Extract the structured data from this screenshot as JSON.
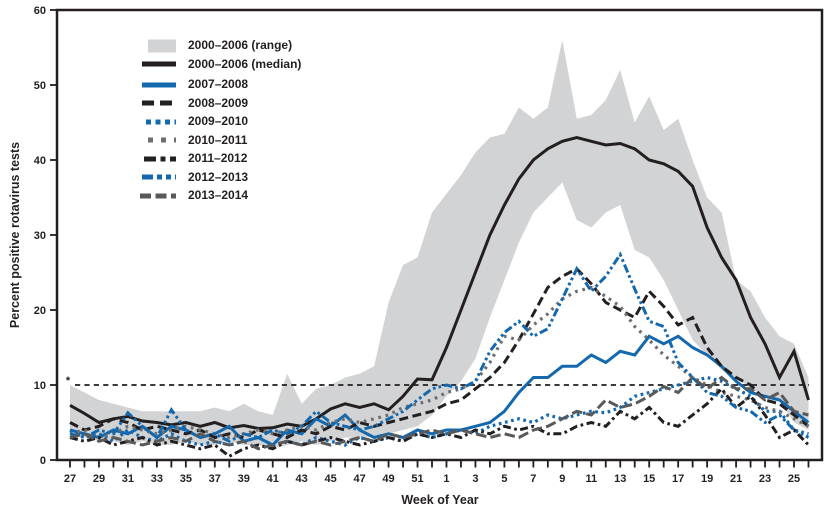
{
  "figure": {
    "ylabel": "Percent positive rotavirus tests",
    "xlabel": "Week of Year",
    "threshold_marker": "*"
  },
  "chart_data": {
    "type": "line",
    "xlabel": "Week of Year",
    "ylabel": "Percent positive rotavirus tests",
    "ylim": [
      0,
      60
    ],
    "y_ticks": [
      0,
      10,
      20,
      30,
      40,
      50,
      60
    ],
    "grid": "off",
    "legend_position": "upper-left-inside",
    "x_categories": [
      27,
      28,
      29,
      30,
      31,
      32,
      33,
      34,
      35,
      36,
      37,
      38,
      39,
      40,
      41,
      42,
      43,
      44,
      45,
      46,
      47,
      48,
      49,
      50,
      51,
      52,
      1,
      2,
      3,
      4,
      5,
      6,
      7,
      8,
      9,
      10,
      11,
      12,
      13,
      14,
      15,
      16,
      17,
      18,
      19,
      20,
      21,
      22,
      23,
      24,
      25,
      26
    ],
    "x_tick_labels": [
      27,
      29,
      31,
      33,
      35,
      37,
      39,
      41,
      43,
      45,
      47,
      49,
      51,
      1,
      3,
      5,
      7,
      9,
      11,
      13,
      15,
      17,
      19,
      21,
      23,
      25
    ],
    "threshold": {
      "y": 10,
      "style": "dashed",
      "marker": "*",
      "color": "#231f20"
    },
    "range_band": {
      "name": "2000–2006 (range)",
      "color": "#d2d3d4",
      "upper": [
        10,
        9,
        8,
        7.5,
        7,
        6.5,
        6.5,
        6.5,
        6.5,
        6.5,
        7,
        6.5,
        7.5,
        6.5,
        6,
        11.5,
        7.5,
        9.5,
        10,
        11,
        11.5,
        12.5,
        21,
        26,
        27,
        33,
        35.5,
        38,
        41,
        43,
        43.5,
        47,
        45.5,
        47,
        56,
        45.5,
        46,
        48,
        52,
        45,
        48.5,
        44,
        45.5,
        40,
        35,
        33,
        24,
        22.5,
        19,
        16.5,
        15.5,
        11
      ],
      "lower": [
        3.5,
        3,
        2.5,
        2.5,
        2,
        2.5,
        2,
        2,
        2.5,
        2,
        2,
        2.5,
        2,
        2,
        1.5,
        2,
        2.5,
        2,
        2.5,
        3,
        3,
        3,
        3.5,
        4,
        4.5,
        6,
        8.5,
        10.5,
        13.5,
        19,
        24,
        29,
        33,
        35,
        37,
        32,
        31,
        33,
        34,
        28,
        27,
        24,
        20,
        16,
        14,
        12,
        11,
        9.5,
        8.5,
        8,
        5,
        4
      ]
    },
    "series": [
      {
        "name": "2000–2006 (median)",
        "color": "#231f20",
        "line_style": "solid",
        "values": [
          7.3,
          6.2,
          5,
          5.5,
          5.8,
          5.2,
          5,
          4.7,
          5,
          4.5,
          5,
          4.3,
          4.6,
          4.2,
          4.3,
          4.8,
          4.5,
          5.5,
          6.8,
          7.5,
          7,
          7.5,
          6.7,
          8.5,
          10.8,
          10.7,
          15,
          20,
          25,
          30,
          34,
          37.5,
          40,
          41.5,
          42.5,
          43,
          42.5,
          42,
          42.2,
          41.5,
          40,
          39.5,
          38.5,
          36.5,
          31,
          27,
          24,
          19,
          15.5,
          11,
          14.5,
          8
        ]
      },
      {
        "name": "2007–2008",
        "color": "#1368ae",
        "line_style": "solid",
        "values": [
          4,
          3.5,
          3,
          4,
          3.5,
          4.5,
          3,
          4.5,
          4,
          3,
          3.5,
          4.5,
          2.5,
          3,
          2,
          4,
          3.5,
          5.5,
          4.5,
          6,
          4,
          3,
          3.5,
          3,
          4,
          3.5,
          4,
          4,
          4.5,
          5,
          6.5,
          9,
          11,
          11,
          12.5,
          12.5,
          14,
          13,
          14.5,
          14,
          16.5,
          15.5,
          16.5,
          15,
          14,
          12.5,
          10.5,
          9,
          8.5,
          8,
          6.5,
          5
        ]
      },
      {
        "name": "2008–2009",
        "color": "#231f20",
        "line_style": "dash",
        "values": [
          5,
          4,
          4.5,
          5.5,
          5,
          4,
          4.5,
          4,
          3.5,
          4,
          3,
          3.5,
          3,
          4,
          3.5,
          3,
          4,
          3.5,
          4.5,
          4,
          5,
          4.5,
          5,
          5.5,
          6,
          6.5,
          7.5,
          8,
          9.5,
          11,
          13,
          16,
          19.5,
          23,
          24.5,
          25.5,
          23.5,
          21,
          20,
          19,
          22.5,
          20.5,
          18,
          19,
          15,
          12.5,
          11,
          10,
          8,
          7.5,
          6,
          4.5
        ]
      },
      {
        "name": "2009–2010",
        "color": "#1368ae",
        "line_style": "dotted",
        "values": [
          4,
          3,
          3.5,
          2.5,
          4,
          3,
          2.5,
          3.5,
          2.5,
          2,
          2.5,
          2,
          2.5,
          3,
          2,
          2.5,
          2,
          3,
          2.5,
          2,
          3,
          2.5,
          3,
          2.5,
          3.5,
          3,
          3.5,
          4,
          3.5,
          4.5,
          5,
          5.5,
          5,
          6,
          5.5,
          6,
          6.5,
          6.3,
          7,
          8.5,
          9,
          9.5,
          10,
          10.5,
          11,
          10.5,
          9.5,
          8.5,
          6.5,
          6.5,
          4,
          3.5
        ]
      },
      {
        "name": "2010–2011",
        "color": "#6d6e71",
        "line_style": "sparse-dotted",
        "values": [
          3.5,
          4,
          3,
          3.5,
          4.5,
          4,
          3.5,
          4,
          4.5,
          4,
          3.5,
          3,
          3.5,
          4,
          3.5,
          4,
          4.5,
          4,
          5,
          5.5,
          5,
          5.5,
          6,
          7,
          7.5,
          8,
          9,
          9.5,
          10.5,
          13,
          16.5,
          16,
          18,
          19.5,
          21.5,
          22.5,
          23,
          21.8,
          20.5,
          17.8,
          16,
          14,
          12.5,
          11,
          10,
          9,
          8.5,
          8,
          7,
          6.5,
          5.5,
          4.5
        ]
      },
      {
        "name": "2011–2012",
        "color": "#231f20",
        "line_style": "dash-dot",
        "values": [
          3,
          2.5,
          3,
          2,
          2.5,
          3,
          2,
          2.5,
          2,
          1.5,
          2,
          0.5,
          1.5,
          2,
          1.5,
          2.5,
          2,
          2.5,
          3,
          2.5,
          2,
          2.5,
          3,
          2.5,
          3.5,
          3,
          3.5,
          3,
          4,
          3.5,
          4.5,
          4,
          4.5,
          3.5,
          3.5,
          4.5,
          5,
          4.5,
          6.5,
          5.5,
          7,
          5,
          4.5,
          6,
          7.5,
          9.5,
          7,
          8.5,
          6,
          3,
          4,
          2
        ]
      },
      {
        "name": "2012–2013",
        "color": "#1368ae",
        "line_style": "dash-dot-dot",
        "values": [
          3.5,
          3,
          4,
          3.5,
          6.3,
          4.5,
          3,
          6.7,
          4,
          3,
          3.5,
          2.5,
          3.5,
          3,
          4,
          3.5,
          4.5,
          6.5,
          5,
          4.5,
          4,
          4.5,
          5.5,
          6.5,
          8,
          9.5,
          10,
          9.5,
          10.5,
          14.5,
          17,
          18.5,
          16.5,
          17.5,
          21.5,
          25.5,
          22.5,
          24.5,
          27.4,
          22.8,
          18.5,
          17.8,
          13,
          11,
          9,
          8.5,
          7,
          6.5,
          5,
          6,
          4,
          3
        ]
      },
      {
        "name": "2013–2014",
        "color": "#58595b",
        "line_style": "long-dash",
        "values": [
          3,
          3.5,
          2.5,
          3,
          2.5,
          2,
          2.5,
          3,
          2.5,
          3.5,
          2.5,
          2,
          2.5,
          1.5,
          2,
          2.5,
          2,
          2.5,
          2,
          2.5,
          3,
          2.5,
          3.5,
          3,
          3.5,
          4,
          3.5,
          4,
          3.5,
          3,
          3.5,
          3,
          4,
          4.5,
          5.5,
          6.5,
          6,
          8,
          7,
          7.5,
          8.5,
          9.8,
          9,
          11,
          9.5,
          11,
          9.5,
          9.5,
          8,
          9,
          6.5,
          6
        ]
      }
    ]
  }
}
